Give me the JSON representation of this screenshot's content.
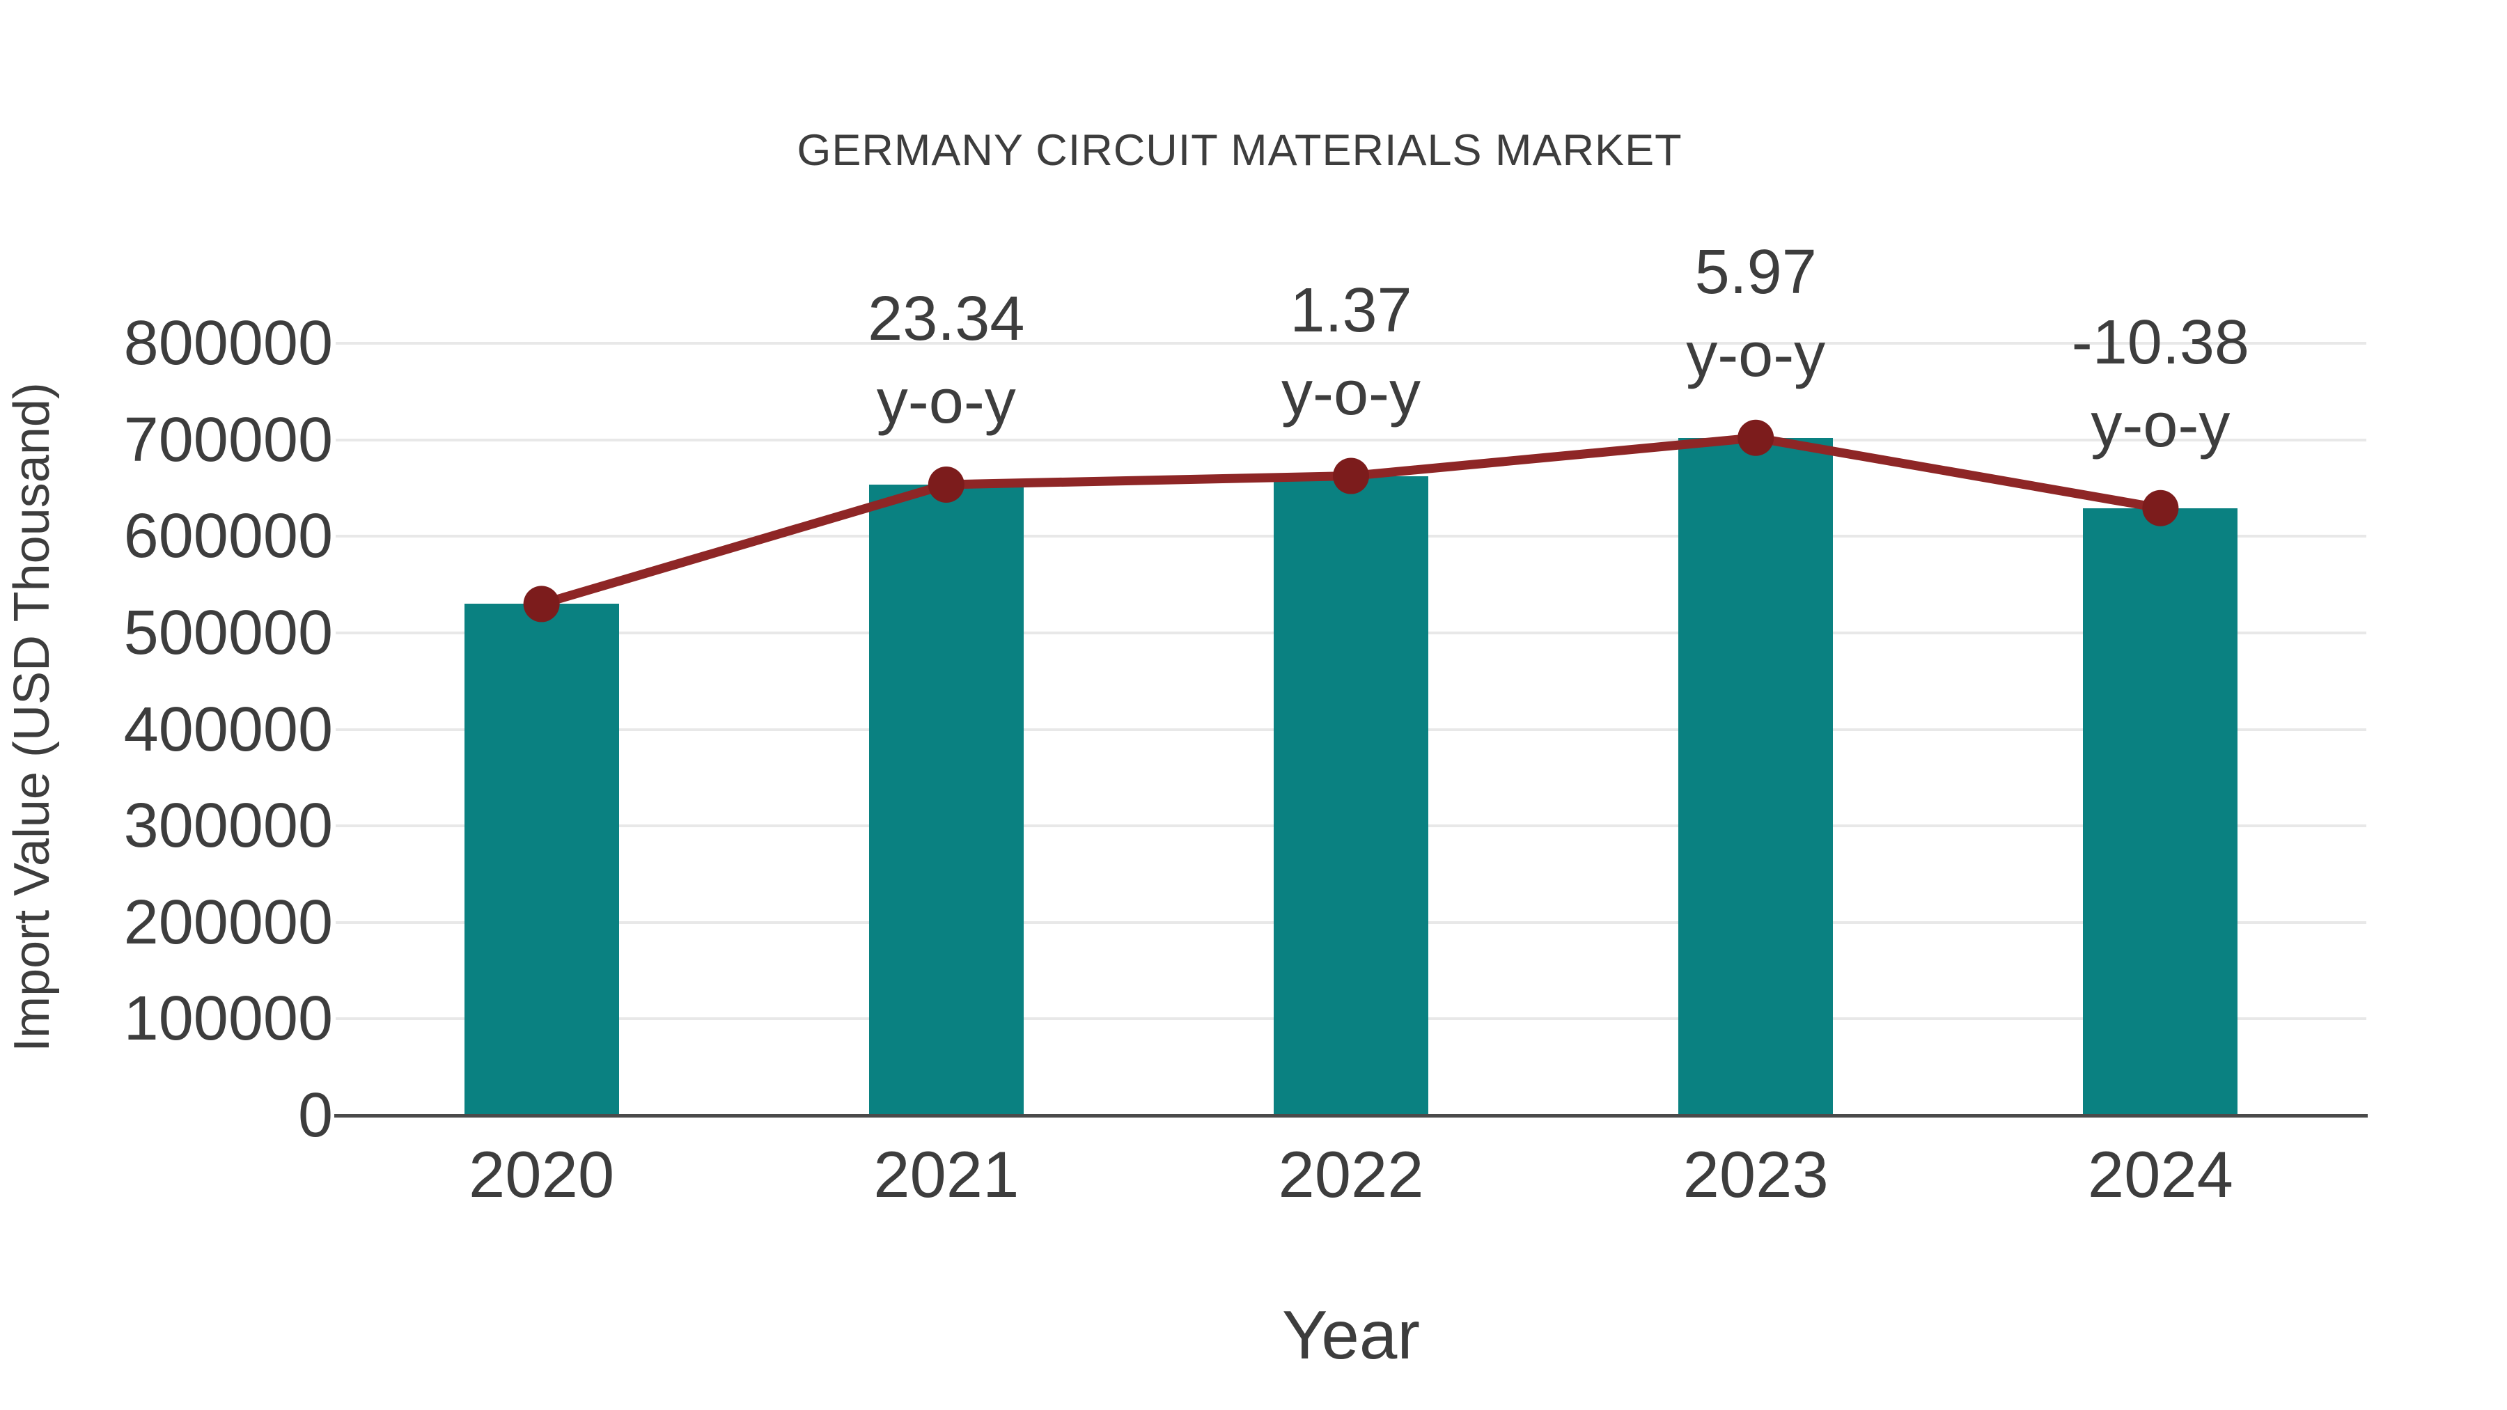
{
  "page": {
    "background": "#ffffff"
  },
  "chart_data": {
    "type": "bar+line",
    "title": "GERMANY CIRCUIT MATERIALS MARKET",
    "xlabel": "Year",
    "ylabel": "Import Value (USD Thousand)",
    "categories": [
      "2020",
      "2021",
      "2022",
      "2023",
      "2024"
    ],
    "series": [
      {
        "name": "Import Value",
        "type": "bar",
        "color": "#0a8181",
        "values": [
          530000,
          653700,
          662660,
          702220,
          629330
        ]
      },
      {
        "name": "y-o-y change",
        "type": "line",
        "color": "#8e2626",
        "marker_color": "#7c1c1c",
        "values": [
          530000,
          653700,
          662660,
          702220,
          629330
        ],
        "annotations": [
          null,
          "23.34",
          "1.37",
          "5.97",
          "-10.38"
        ],
        "annotation_second_line": "y-o-y"
      }
    ],
    "ylim": [
      0,
      800000
    ],
    "yticks": [
      0,
      100000,
      200000,
      300000,
      400000,
      500000,
      600000,
      700000,
      800000
    ],
    "grid": "horizontal",
    "gridline_color": "#e8e8e8",
    "axis_line_color": "#4a4a4a",
    "text_color": "#3d3d3d",
    "legend_position": "none"
  }
}
